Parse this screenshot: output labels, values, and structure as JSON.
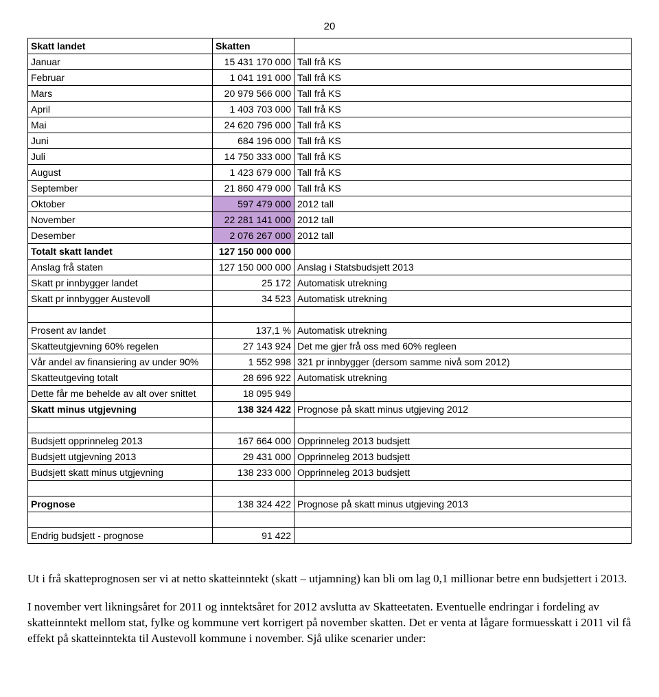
{
  "page_number": "20",
  "table": {
    "header": {
      "label": "Skatt landet",
      "value": "Skatten"
    },
    "months": [
      {
        "label": "Januar",
        "value": "15 431 170 000",
        "note": "Tall frå KS"
      },
      {
        "label": "Februar",
        "value": "1 041 191 000",
        "note": "Tall frå KS"
      },
      {
        "label": "Mars",
        "value": "20 979 566 000",
        "note": "Tall frå KS"
      },
      {
        "label": "April",
        "value": "1 403 703 000",
        "note": "Tall frå KS"
      },
      {
        "label": "Mai",
        "value": "24 620 796 000",
        "note": "Tall frå KS"
      },
      {
        "label": "Juni",
        "value": "684 196 000",
        "note": "Tall frå KS"
      },
      {
        "label": "Juli",
        "value": "14 750 333 000",
        "note": "Tall frå KS"
      },
      {
        "label": "August",
        "value": "1 423 679 000",
        "note": "Tall frå KS"
      },
      {
        "label": "September",
        "value": "21 860 479 000",
        "note": "Tall frå KS"
      },
      {
        "label": "Oktober",
        "value": "597 479 000",
        "note": "2012 tall",
        "highlight": true
      },
      {
        "label": "November",
        "value": "22 281 141 000",
        "note": "2012 tall",
        "highlight": true
      },
      {
        "label": "Desember",
        "value": "2 076 267 000",
        "note": "2012 tall",
        "highlight": true
      }
    ],
    "totals": [
      {
        "label": "Totalt skatt landet",
        "value": "127 150 000 000",
        "note": "",
        "bold": true
      },
      {
        "label": "Anslag frå staten",
        "value": "127 150 000 000",
        "note": "Anslag i Statsbudsjett 2013"
      },
      {
        "label": "Skatt pr innbygger landet",
        "value": "25 172",
        "note": "Automatisk utrekning"
      },
      {
        "label": "Skatt pr innbygger Austevoll",
        "value": "34 523",
        "note": "Automatisk utrekning"
      }
    ],
    "calc": [
      {
        "label": "Prosent av landet",
        "value": "137,1 %",
        "note": "Automatisk utrekning"
      },
      {
        "label": "Skatteutgjevning 60% regelen",
        "value": "27 143 924",
        "note": "Det me gjer frå oss med 60% regleen"
      },
      {
        "label": "Vår andel av finansiering av under 90%",
        "value": "1 552 998",
        "note": "321 pr innbygger (dersom samme nivå som 2012)"
      },
      {
        "label": "Skatteutgeving totalt",
        "value": "28 696 922",
        "note": "Automatisk utrekning"
      },
      {
        "label": "Dette får me behelde av alt over snittet",
        "value": "18 095 949",
        "note": ""
      },
      {
        "label": "Skatt minus utgjevning",
        "value": "138 324 422",
        "note": "Prognose på skatt minus utgjeving 2012",
        "bold": true
      }
    ],
    "budget": [
      {
        "label": "Budsjett opprinneleg 2013",
        "value": "167 664 000",
        "note": "Opprinneleg 2013 budsjett"
      },
      {
        "label": "Budsjett utgjevning 2013",
        "value": "29 431 000",
        "note": "Opprinneleg 2013 budsjett"
      },
      {
        "label": "Budsjett skatt minus utgjevning",
        "value": "138 233 000",
        "note": "Opprinneleg 2013 budsjett"
      }
    ],
    "prognose": {
      "label": "Prognose",
      "value": "138 324 422",
      "note": "Prognose på skatt minus utgjeving 2013"
    },
    "endring": {
      "label": "Endrig budsjett - prognose",
      "value": "91 422",
      "note": ""
    }
  },
  "prose": {
    "p1": "Ut i frå skatteprognosen ser vi at netto skatteinntekt (skatt – utjamning) kan bli om lag 0,1 millionar betre enn budsjettert i 2013.",
    "p2": "I november vert likningsåret for 2011 og inntektsåret for 2012 avslutta av Skatteetaten. Eventuelle endringar i fordeling av skatteinntekt mellom stat, fylke og kommune vert korrigert på november skatten. Det er venta at lågare formuesskatt i 2011 vil få effekt på skatteinntekta til Austevoll kommune i november. Sjå ulike scenarier under:"
  }
}
